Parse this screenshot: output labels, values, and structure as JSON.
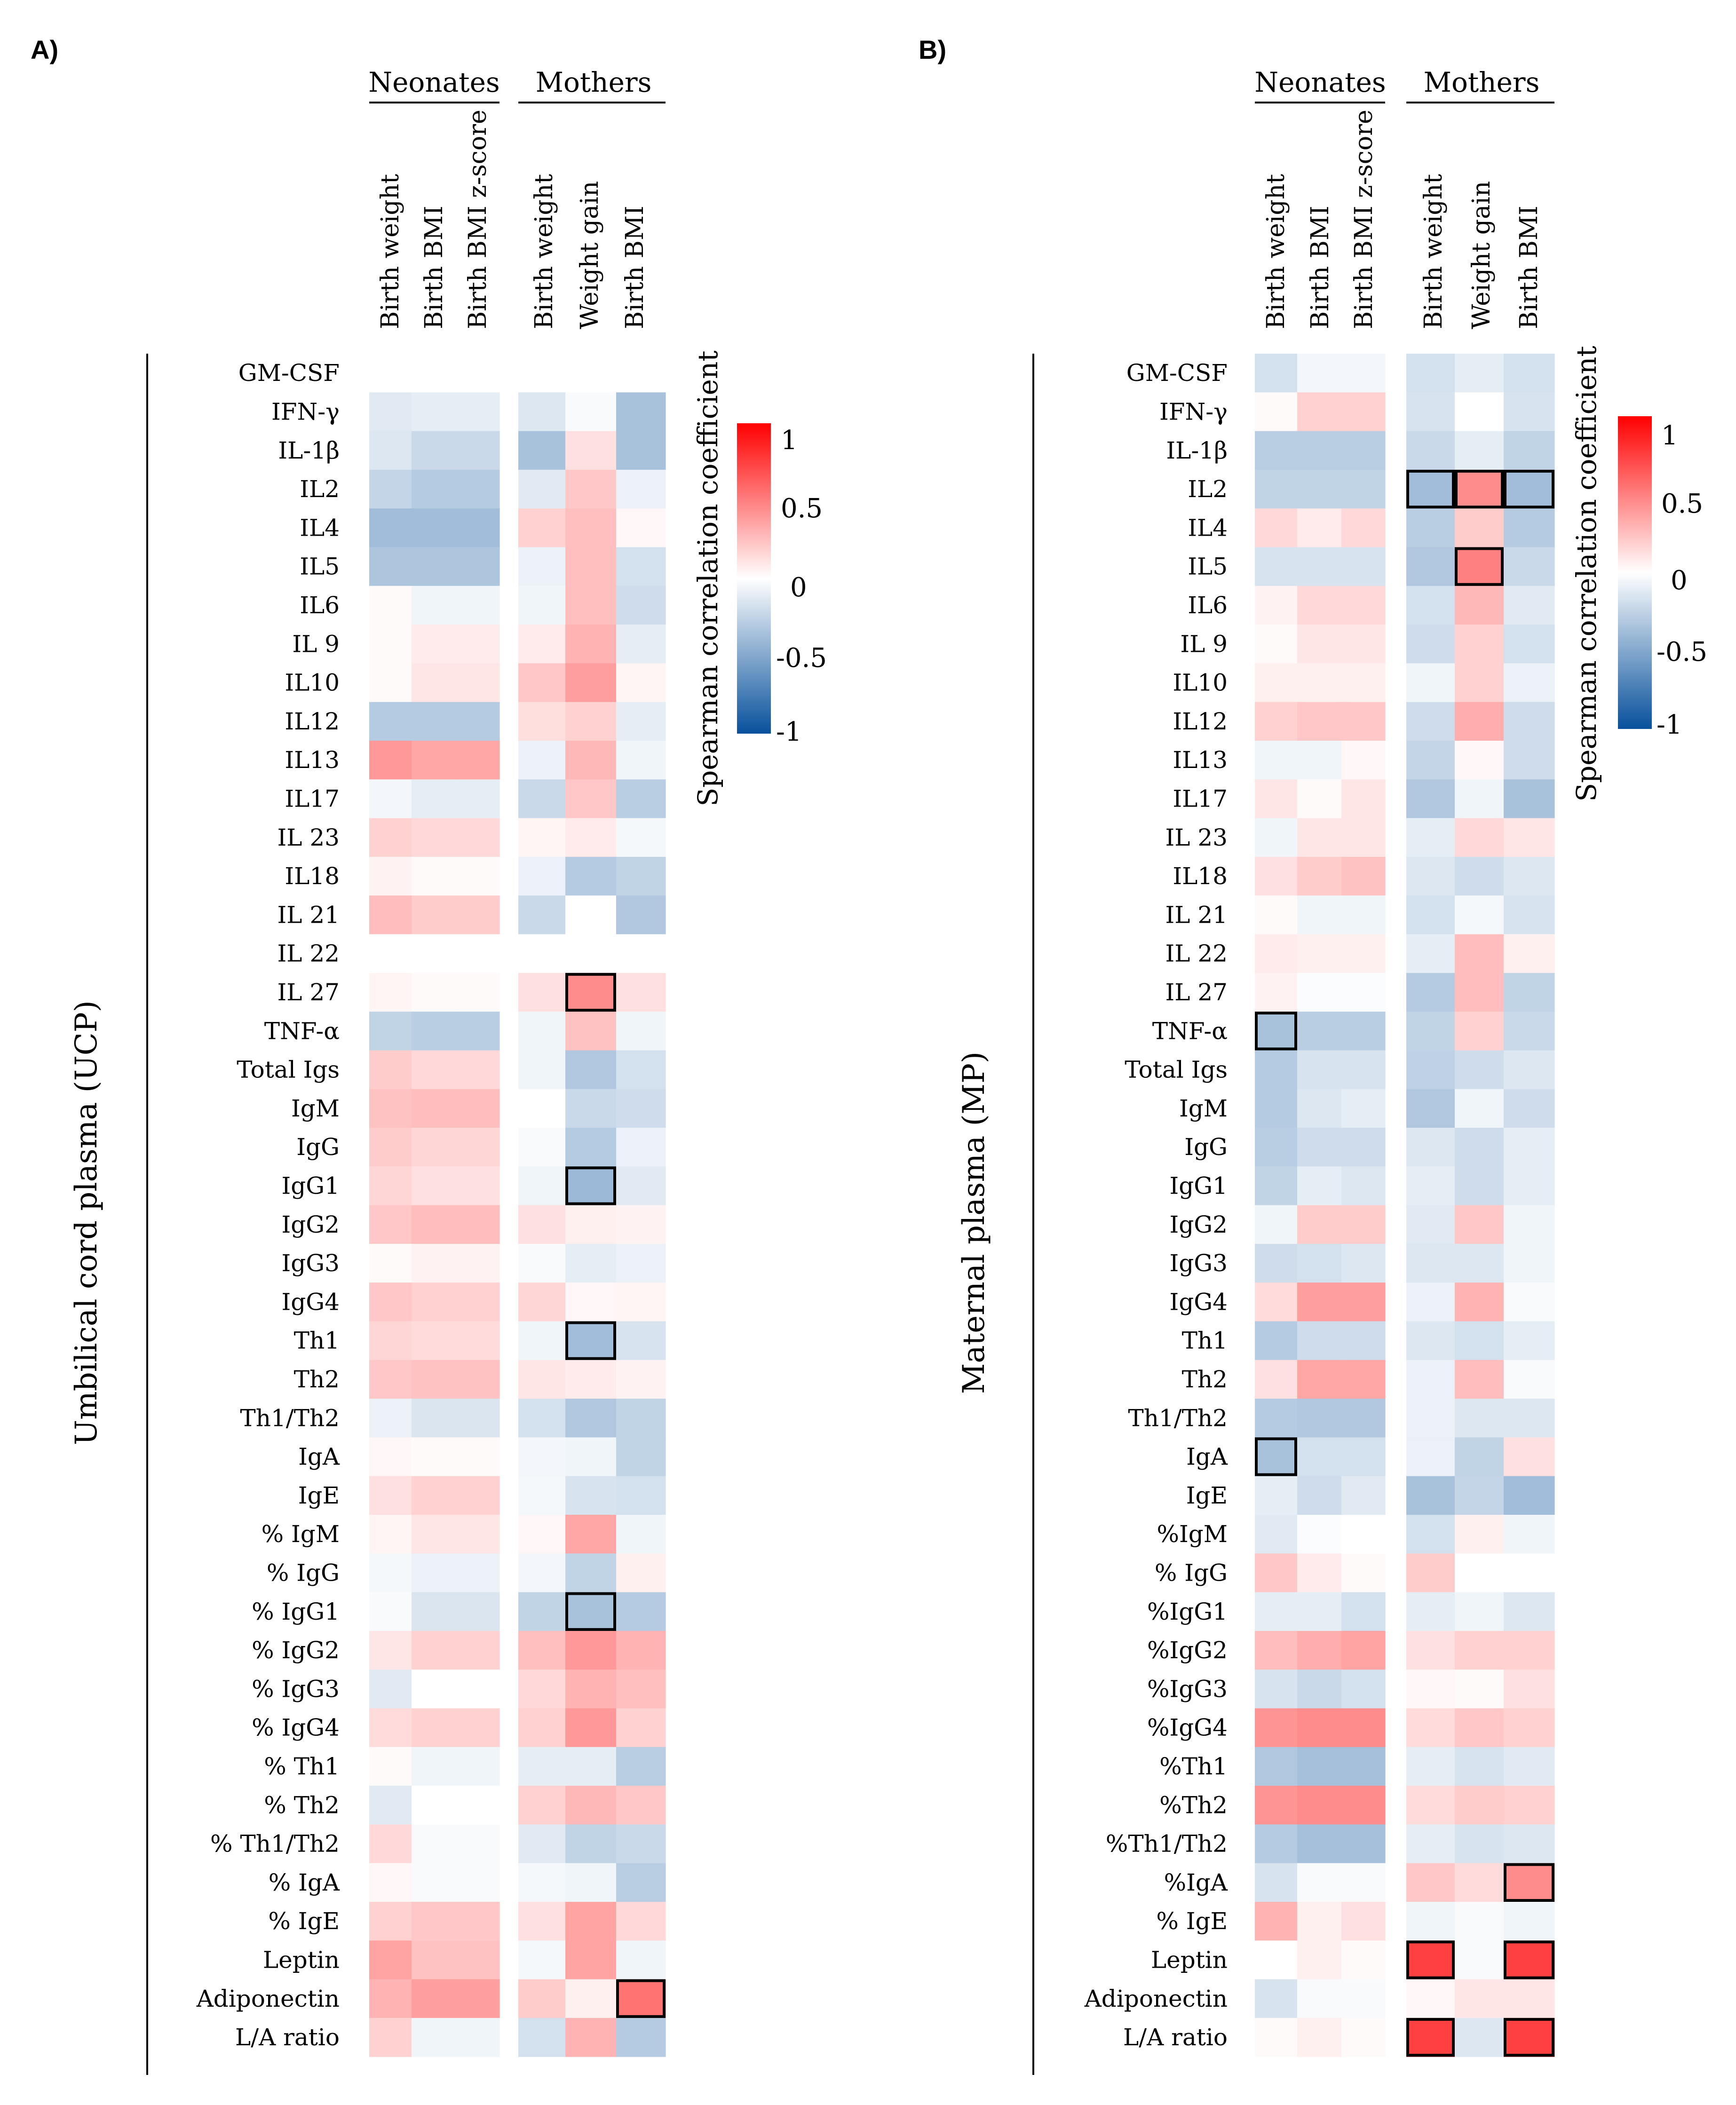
{
  "chart_data": [
    {
      "type": "heatmap",
      "panel_label": "A)",
      "ylabel": "Umbilical cord plasma (UCP)",
      "column_groups": [
        {
          "name": "Neonates",
          "columns": [
            "Birth weight",
            "Birth BMI",
            "Birth BMI z-score"
          ]
        },
        {
          "name": "Mothers",
          "columns": [
            "Birth weight",
            "Weight gain",
            "Birth BMI"
          ]
        }
      ],
      "rows": [
        "GM-CSF",
        "IFN-γ",
        "IL-1β",
        "IL2",
        "IL4",
        "IL5",
        "IL6",
        "IL 9",
        "IL10",
        "IL12",
        "IL13",
        "IL17",
        "IL 23",
        "IL18",
        "IL 21",
        "IL 22",
        "IL 27",
        "TNF-α",
        "Total Igs",
        "IgM",
        "IgG",
        "IgG1",
        "IgG2",
        "IgG3",
        "IgG4",
        "Th1",
        "Th2",
        "Th1/Th2",
        "IgA",
        "IgE",
        "% IgM",
        "% IgG",
        "% IgG1",
        "% IgG2",
        "% IgG3",
        "% IgG4",
        "% Th1",
        "% Th2",
        "% Th1/Th2",
        "% IgA",
        "% IgE",
        "Leptin",
        "Adiponectin",
        "L/A ratio"
      ],
      "values": [
        [
          0,
          0,
          0,
          0,
          0,
          0
        ],
        [
          -0.12,
          -0.1,
          -0.1,
          -0.14,
          -0.03,
          -0.35
        ],
        [
          -0.14,
          -0.22,
          -0.22,
          -0.35,
          0.12,
          -0.35
        ],
        [
          -0.24,
          -0.3,
          -0.3,
          -0.12,
          0.22,
          -0.08
        ],
        [
          -0.38,
          -0.38,
          -0.38,
          0.18,
          0.25,
          0.03
        ],
        [
          -0.33,
          -0.33,
          -0.33,
          -0.08,
          0.25,
          -0.18
        ],
        [
          0.02,
          -0.06,
          -0.06,
          -0.06,
          0.25,
          -0.2
        ],
        [
          0.02,
          0.08,
          0.08,
          0.08,
          0.3,
          -0.1
        ],
        [
          0.02,
          0.1,
          0.1,
          0.22,
          0.38,
          0.04
        ],
        [
          -0.3,
          -0.3,
          -0.3,
          0.13,
          0.18,
          -0.1
        ],
        [
          0.4,
          0.35,
          0.35,
          -0.08,
          0.28,
          -0.06
        ],
        [
          -0.05,
          -0.1,
          -0.1,
          -0.22,
          0.22,
          -0.28
        ],
        [
          0.18,
          0.15,
          0.15,
          0.04,
          0.08,
          -0.04
        ],
        [
          0.05,
          0.02,
          0.02,
          -0.08,
          -0.3,
          -0.25
        ],
        [
          0.26,
          0.2,
          0.2,
          -0.22,
          0,
          -0.32
        ],
        [
          0,
          0,
          0,
          0,
          0,
          0
        ],
        [
          0.04,
          0.02,
          0.02,
          0.12,
          0.45,
          0.12
        ],
        [
          -0.25,
          -0.28,
          -0.28,
          -0.06,
          0.24,
          -0.06
        ],
        [
          0.2,
          0.15,
          0.15,
          -0.06,
          -0.32,
          -0.18
        ],
        [
          0.24,
          0.26,
          0.26,
          0,
          -0.22,
          -0.2
        ],
        [
          0.2,
          0.16,
          0.16,
          -0.03,
          -0.3,
          -0.08
        ],
        [
          0.16,
          0.12,
          0.12,
          -0.06,
          -0.4,
          -0.12
        ],
        [
          0.22,
          0.26,
          0.26,
          0.12,
          0.06,
          0.05
        ],
        [
          0.02,
          0.05,
          0.05,
          -0.03,
          -0.1,
          -0.08
        ],
        [
          0.22,
          0.18,
          0.18,
          0.16,
          0.03,
          0.04
        ],
        [
          0.16,
          0.14,
          0.14,
          -0.06,
          -0.38,
          -0.16
        ],
        [
          0.22,
          0.24,
          0.24,
          0.1,
          0.08,
          0.05
        ],
        [
          -0.08,
          -0.15,
          -0.15,
          -0.18,
          -0.32,
          -0.25
        ],
        [
          0.03,
          0.02,
          0.02,
          -0.05,
          -0.06,
          -0.25
        ],
        [
          0.12,
          0.18,
          0.18,
          -0.04,
          -0.16,
          -0.18
        ],
        [
          0.04,
          0.1,
          0.1,
          0.03,
          0.35,
          -0.06
        ],
        [
          -0.04,
          -0.08,
          -0.08,
          -0.05,
          -0.25,
          0.06
        ],
        [
          -0.03,
          -0.15,
          -0.15,
          -0.25,
          -0.35,
          -0.3
        ],
        [
          0.1,
          0.18,
          0.18,
          0.25,
          0.4,
          0.3
        ],
        [
          -0.12,
          0,
          0,
          0.15,
          0.3,
          0.25
        ],
        [
          0.14,
          0.18,
          0.18,
          0.18,
          0.4,
          0.18
        ],
        [
          0.02,
          -0.06,
          -0.06,
          -0.1,
          -0.1,
          -0.28
        ],
        [
          -0.12,
          0,
          0,
          0.18,
          0.28,
          0.22
        ],
        [
          0.15,
          -0.03,
          -0.03,
          -0.12,
          -0.25,
          -0.22
        ],
        [
          0.03,
          -0.03,
          -0.03,
          -0.04,
          -0.06,
          -0.28
        ],
        [
          0.18,
          0.22,
          0.22,
          0.12,
          0.36,
          0.15
        ],
        [
          0.36,
          0.24,
          0.24,
          -0.04,
          0.36,
          -0.06
        ],
        [
          0.3,
          0.38,
          0.38,
          0.2,
          0.06,
          0.55
        ],
        [
          0.18,
          -0.06,
          -0.06,
          -0.18,
          0.3,
          -0.3
        ]
      ],
      "highlighted_cells": [
        [
          16,
          4
        ],
        [
          21,
          4
        ],
        [
          25,
          4
        ],
        [
          32,
          4
        ],
        [
          42,
          5
        ]
      ]
    },
    {
      "type": "heatmap",
      "panel_label": "B)",
      "ylabel": "Maternal plasma (MP)",
      "column_groups": [
        {
          "name": "Neonates",
          "columns": [
            "Birth weight",
            "Birth BMI",
            "Birth BMI z-score"
          ]
        },
        {
          "name": "Mothers",
          "columns": [
            "Birth weight",
            "Weight gain",
            "Birth BMI"
          ]
        }
      ],
      "rows": [
        "GM-CSF",
        "IFN-γ",
        "IL-1β",
        "IL2",
        "IL4",
        "IL5",
        "IL6",
        "IL 9",
        "IL10",
        "IL12",
        "IL13",
        "IL17",
        "IL 23",
        "IL18",
        "IL 21",
        "IL 22",
        "IL 27",
        "TNF-α",
        "Total Igs",
        "IgM",
        "IgG",
        "IgG1",
        "IgG2",
        "IgG3",
        "IgG4",
        "Th1",
        "Th2",
        "Th1/Th2",
        "IgA",
        "IgE",
        "%IgM",
        "% IgG",
        "%IgG1",
        "%IgG2",
        "%IgG3",
        "%IgG4",
        "%Th1",
        "%Th2",
        "%Th1/Th2",
        "%IgA",
        "% IgE",
        "Leptin",
        "Adiponectin",
        "L/A ratio"
      ],
      "values": [
        [
          -0.18,
          -0.05,
          -0.05,
          -0.18,
          -0.1,
          -0.18
        ],
        [
          0.02,
          0.18,
          0.18,
          -0.16,
          0,
          -0.16
        ],
        [
          -0.28,
          -0.28,
          -0.28,
          -0.22,
          -0.1,
          -0.25
        ],
        [
          -0.25,
          -0.25,
          -0.25,
          -0.38,
          0.45,
          -0.38
        ],
        [
          0.15,
          0.08,
          0.15,
          -0.28,
          0.2,
          -0.3
        ],
        [
          -0.16,
          -0.16,
          -0.16,
          -0.32,
          0.5,
          -0.22
        ],
        [
          0.05,
          0.15,
          0.15,
          -0.18,
          0.28,
          -0.12
        ],
        [
          0.02,
          0.1,
          0.1,
          -0.2,
          0.18,
          -0.18
        ],
        [
          0.06,
          0.06,
          0.06,
          -0.06,
          0.18,
          -0.08
        ],
        [
          0.18,
          0.22,
          0.22,
          -0.2,
          0.32,
          -0.2
        ],
        [
          -0.06,
          -0.06,
          0.03,
          -0.24,
          0.03,
          -0.2
        ],
        [
          0.1,
          0.02,
          0.1,
          -0.32,
          -0.06,
          -0.35
        ],
        [
          -0.06,
          0.1,
          0.1,
          -0.1,
          0.15,
          0.1
        ],
        [
          0.12,
          0.2,
          0.24,
          -0.14,
          -0.2,
          -0.14
        ],
        [
          0.02,
          -0.06,
          -0.06,
          -0.18,
          -0.04,
          -0.16
        ],
        [
          0.08,
          0.06,
          0.06,
          -0.1,
          0.26,
          0.06
        ],
        [
          0.05,
          -0.02,
          -0.02,
          -0.3,
          0.26,
          -0.25
        ],
        [
          -0.35,
          -0.28,
          -0.28,
          -0.25,
          0.18,
          -0.22
        ],
        [
          -0.3,
          -0.16,
          -0.16,
          -0.26,
          -0.2,
          -0.14
        ],
        [
          -0.3,
          -0.14,
          -0.1,
          -0.32,
          -0.06,
          -0.2
        ],
        [
          -0.28,
          -0.2,
          -0.2,
          -0.14,
          -0.2,
          -0.1
        ],
        [
          -0.25,
          -0.1,
          -0.14,
          -0.1,
          -0.2,
          -0.1
        ],
        [
          -0.06,
          0.2,
          0.2,
          -0.12,
          0.22,
          -0.06
        ],
        [
          -0.2,
          -0.18,
          -0.14,
          -0.14,
          -0.14,
          -0.06
        ],
        [
          0.14,
          0.38,
          0.38,
          -0.08,
          0.3,
          -0.03
        ],
        [
          -0.3,
          -0.2,
          -0.2,
          -0.14,
          -0.18,
          -0.1
        ],
        [
          0.12,
          0.35,
          0.35,
          -0.08,
          0.26,
          -0.03
        ],
        [
          -0.3,
          -0.32,
          -0.32,
          -0.08,
          -0.14,
          -0.14
        ],
        [
          -0.35,
          -0.18,
          -0.18,
          -0.08,
          -0.25,
          0.12
        ],
        [
          -0.1,
          -0.2,
          -0.12,
          -0.35,
          -0.24,
          -0.38
        ],
        [
          -0.12,
          -0.02,
          0,
          -0.18,
          0.06,
          -0.06
        ],
        [
          0.22,
          0.08,
          0.02,
          0.2,
          0,
          0
        ],
        [
          -0.1,
          -0.1,
          -0.18,
          -0.1,
          -0.06,
          -0.14
        ],
        [
          0.26,
          0.32,
          0.36,
          0.12,
          0.18,
          0.18
        ],
        [
          -0.16,
          -0.22,
          -0.18,
          0.03,
          0.02,
          0.12
        ],
        [
          0.42,
          0.45,
          0.45,
          0.14,
          0.22,
          0.18
        ],
        [
          -0.32,
          -0.36,
          -0.36,
          -0.1,
          -0.16,
          -0.12
        ],
        [
          0.42,
          0.45,
          0.45,
          0.14,
          0.2,
          0.18
        ],
        [
          -0.3,
          -0.36,
          -0.36,
          -0.1,
          -0.16,
          -0.14
        ],
        [
          -0.16,
          -0.03,
          -0.03,
          0.22,
          0.14,
          0.45
        ],
        [
          0.3,
          0.06,
          0.12,
          -0.06,
          -0.03,
          -0.06
        ],
        [
          0,
          0.06,
          0.02,
          0.75,
          -0.03,
          0.75
        ],
        [
          -0.16,
          -0.03,
          -0.03,
          0.03,
          0.1,
          0.1
        ],
        [
          0.02,
          0.06,
          0.02,
          0.75,
          -0.14,
          0.75
        ]
      ],
      "highlighted_cells": [
        [
          3,
          3
        ],
        [
          3,
          4
        ],
        [
          3,
          5
        ],
        [
          5,
          4
        ],
        [
          17,
          0
        ],
        [
          28,
          0
        ],
        [
          39,
          5
        ],
        [
          41,
          3
        ],
        [
          41,
          5
        ],
        [
          43,
          3
        ],
        [
          43,
          5
        ]
      ]
    }
  ],
  "colorbar": {
    "title": "Spearman correlation coefficient",
    "ticks": [
      "1",
      "0.5",
      "0",
      "-0.5",
      "-1"
    ],
    "range": [
      -1,
      1
    ],
    "colors": {
      "min": "#08519c",
      "mid": "#ffffff",
      "max": "#ff0000"
    }
  }
}
